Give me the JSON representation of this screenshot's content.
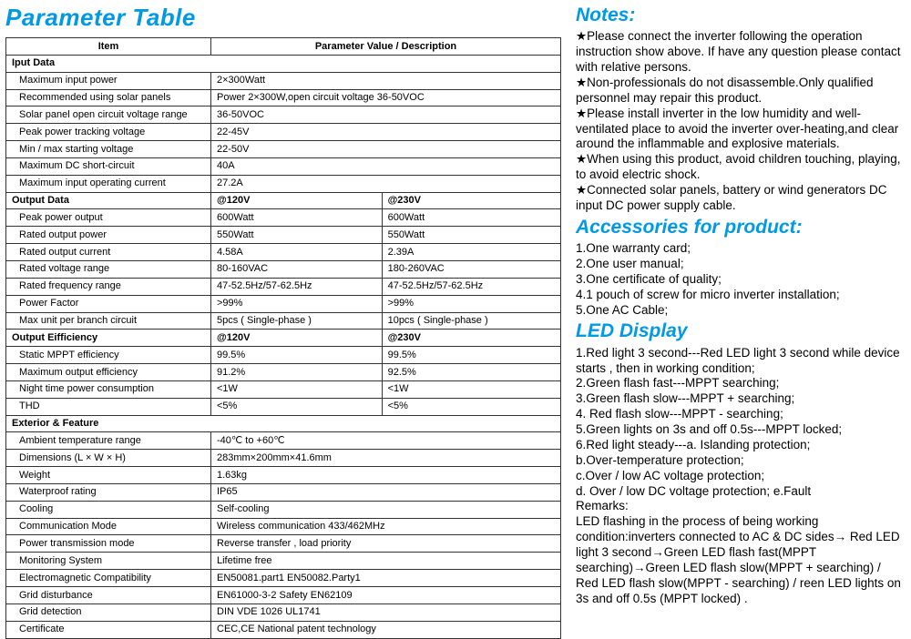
{
  "title": "Parameter Table",
  "table": {
    "header_item": "Item",
    "header_value": "Parameter Value / Description",
    "sections": [
      {
        "name": "Iput Data",
        "rows": [
          [
            "Maximum input power",
            "2×300Watt"
          ],
          [
            "Recommended using solar panels",
            "Power 2×300W,open circuit voltage 36-50VOC"
          ],
          [
            "Solar panel open circuit voltage range",
            "36-50VOC"
          ],
          [
            "Peak power tracking voltage",
            "22-45V"
          ],
          [
            "Min / max starting voltage",
            "22-50V"
          ],
          [
            "Maximum DC short-circuit",
            "40A"
          ],
          [
            "Maximum input operating current",
            "27.2A"
          ]
        ]
      },
      {
        "name": "Output Data",
        "col2": "@120V",
        "col3": "@230V",
        "rows": [
          [
            "Peak power output",
            "600Watt",
            "600Watt"
          ],
          [
            "Rated output power",
            "550Watt",
            "550Watt"
          ],
          [
            "Rated output current",
            "4.58A",
            "2.39A"
          ],
          [
            "Rated voltage range",
            "80-160VAC",
            "180-260VAC"
          ],
          [
            "Rated frequency range",
            "47-52.5Hz/57-62.5Hz",
            "47-52.5Hz/57-62.5Hz"
          ],
          [
            "Power Factor",
            ">99%",
            ">99%"
          ],
          [
            "Max unit per branch circuit",
            "5pcs ( Single-phase )",
            "10pcs ( Single-phase )"
          ]
        ]
      },
      {
        "name": "Output Eifficiency",
        "col2": "@120V",
        "col3": "@230V",
        "rows": [
          [
            "Static MPPT efficiency",
            "99.5%",
            "99.5%"
          ],
          [
            "Maximum output efficiency",
            "91.2%",
            "92.5%"
          ],
          [
            "Night time power consumption",
            "<1W",
            "<1W"
          ],
          [
            "THD",
            "<5%",
            "<5%"
          ]
        ]
      },
      {
        "name": "Exterior & Feature",
        "rows": [
          [
            "Ambient temperature range",
            "-40℃ to +60℃"
          ],
          [
            "Dimensions (L × W × H)",
            "283mm×200mm×41.6mm"
          ],
          [
            "Weight",
            "1.63kg"
          ],
          [
            "Waterproof rating",
            "IP65"
          ],
          [
            "Cooling",
            "Self-cooling"
          ],
          [
            "Communication Mode",
            "Wireless communication 433/462MHz"
          ],
          [
            "Power transmission mode",
            "Reverse transfer , load priority"
          ],
          [
            "Monitoring System",
            "Lifetime free"
          ],
          [
            "Electromagnetic Compatibility",
            "EN50081.part1 EN50082.Party1"
          ],
          [
            "Grid disturbance",
            "EN61000-3-2 Safety EN62109"
          ],
          [
            "Grid detection",
            "DIN VDE 1026 UL1741"
          ],
          [
            "Certificate",
            "CEC,CE National patent technology"
          ]
        ]
      }
    ]
  },
  "right": {
    "notes_title": "Notes:",
    "notes": [
      "Please connect the inverter following the operation instruction show above.  If have any question please contact with relative persons.",
      "Non-professionals do not disassemble.Only qualified personnel may repair this product.",
      "Please install inverter in the low humidity and well-ventilated place to avoid the inverter over-heating,and clear around the inflammable and explosive materials.",
      "When using this product,  avoid children touching, playing,  to avoid electric shock.",
      "Connected solar panels,  battery or wind generators DC input DC power supply cable."
    ],
    "acc_title": "Accessories for product:",
    "acc": [
      "1.One warranty card;",
      "2.One user manual;",
      "3.One certificate of quality;",
      "4.1 pouch of screw for micro inverter installation;",
      "5.One AC Cable;"
    ],
    "led_title": "LED Display",
    "led": [
      "1.Red light 3 second---Red LED light 3 second while device starts , then in working condition;",
      "2.Green flash fast---MPPT searching;",
      "3.Green flash slow---MPPT + searching;",
      "4. Red flash slow---MPPT - searching;",
      "5.Green lights on 3s and off 0.5s---MPPT locked;",
      "6.Red light steady---a. Islanding protection;",
      "b.Over-temperature protection;",
      "c.Over / low AC voltage protection;",
      "d. Over / low DC voltage protection; e.Fault",
      "Remarks:",
      "LED flashing in the process of being working condition:inverters connected to AC & DC sides→ Red LED light 3 second→Green LED flash fast(MPPT searching)→Green LED flash slow(MPPT + searching) / Red LED flash slow(MPPT - searching) / reen LED lights on 3s and off 0.5s (MPPT locked) ."
    ]
  }
}
